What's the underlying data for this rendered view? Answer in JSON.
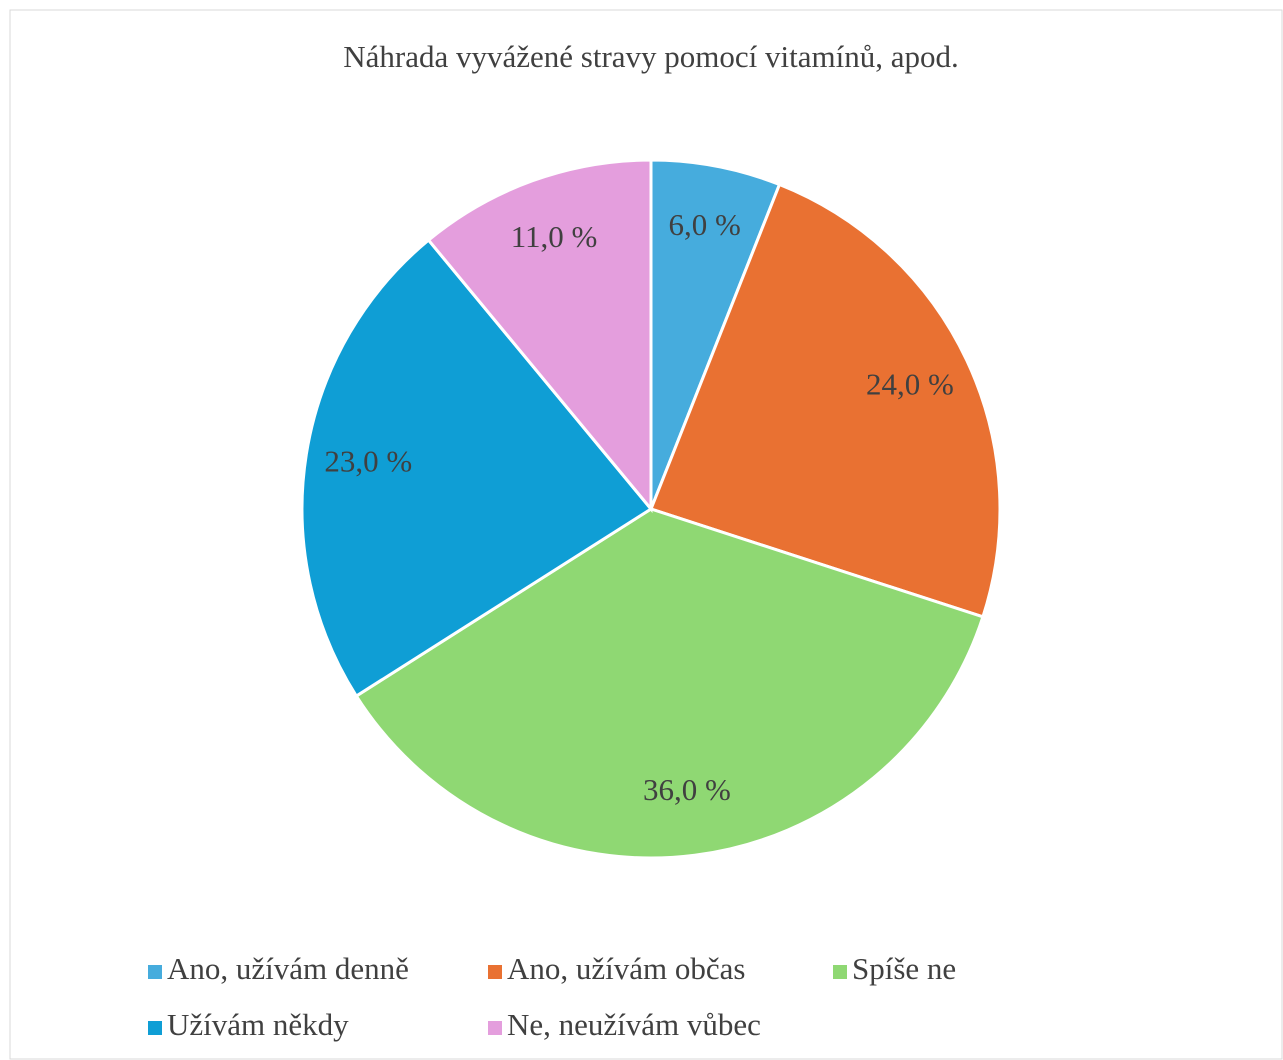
{
  "chart_data": {
    "type": "pie",
    "title": "Náhrada vyvážené stravy pomocí vitamínů, apod.",
    "categories": [
      "Ano, užívám denně",
      "Ano, užívám občas",
      "Spíše ne",
      "Užívám někdy",
      "Ne, neužívám vůbec"
    ],
    "values": [
      6,
      24,
      36,
      23,
      11
    ],
    "value_labels": [
      "6,0 %",
      "24,0 %",
      "36,0 %",
      "23,0 %",
      "11,0 %"
    ],
    "colors": [
      "#46acdd",
      "#e97132",
      "#8fd873",
      "#0f9ed5",
      "#e49edd"
    ],
    "legend": "bottom"
  }
}
